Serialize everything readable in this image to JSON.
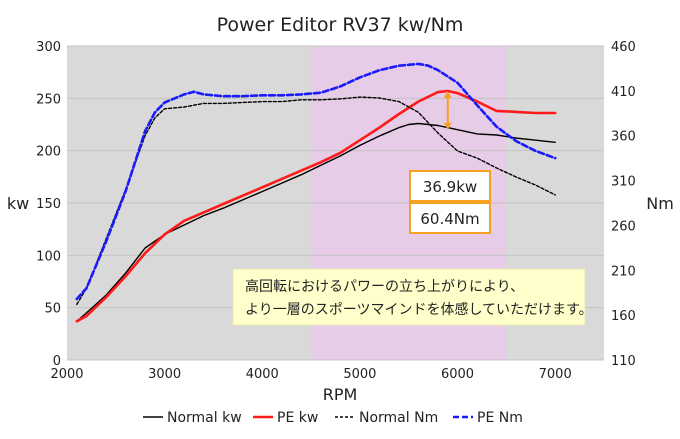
{
  "chart_data": {
    "type": "line",
    "title": "Power Editor RV37 kw/Nm",
    "xlabel": "RPM",
    "ylabel_left": "kw",
    "ylabel_right": "Nm",
    "xlim": [
      2000,
      7500
    ],
    "ylim_left": [
      0,
      300
    ],
    "ylim_right": [
      110,
      460
    ],
    "xticks": [
      2000,
      3000,
      4000,
      5000,
      6000,
      7000
    ],
    "yticks_left": [
      0,
      50,
      100,
      150,
      200,
      250,
      300
    ],
    "yticks_right": [
      110,
      160,
      210,
      260,
      310,
      360,
      410,
      460
    ],
    "grid": true,
    "legend_position": "bottom",
    "highlight_band": {
      "x": [
        4500,
        6500
      ],
      "color": "#e6cce6"
    },
    "plot_background": "#d9d9d9",
    "series": [
      {
        "name": "Normal kw",
        "axis": "left",
        "color": "#000000",
        "dash": "solid",
        "width": 1.4,
        "x": [
          2100,
          2200,
          2400,
          2600,
          2800,
          3000,
          3200,
          3400,
          3600,
          3800,
          4000,
          4200,
          4400,
          4600,
          4800,
          5000,
          5200,
          5400,
          5500,
          5600,
          5800,
          6000,
          6200,
          6400,
          6600,
          6800,
          7000
        ],
        "values": [
          37,
          45,
          62,
          83,
          107,
          120,
          129,
          138,
          145,
          153,
          161,
          169,
          177,
          186,
          195,
          205,
          214,
          222,
          225,
          226,
          224,
          220,
          216,
          215,
          212,
          210,
          208
        ]
      },
      {
        "name": "PE kw",
        "axis": "left",
        "color": "#ff1a1a",
        "dash": "solid",
        "width": 2.6,
        "x": [
          2100,
          2200,
          2400,
          2600,
          2800,
          3000,
          3200,
          3400,
          3600,
          3800,
          4000,
          4200,
          4400,
          4600,
          4800,
          5000,
          5200,
          5400,
          5600,
          5800,
          5900,
          6000,
          6200,
          6400,
          6600,
          6800,
          7000
        ],
        "values": [
          37,
          42,
          60,
          80,
          102,
          120,
          133,
          141,
          149,
          157,
          165,
          173,
          181,
          189,
          198,
          210,
          222,
          235,
          247,
          256,
          257,
          255,
          247,
          238,
          237,
          236,
          236
        ]
      },
      {
        "name": "Normal Nm",
        "axis": "right",
        "color": "#000000",
        "dash": "dotted",
        "width": 1.4,
        "x": [
          2100,
          2200,
          2400,
          2600,
          2800,
          2900,
          3000,
          3200,
          3400,
          3600,
          3800,
          4000,
          4200,
          4400,
          4600,
          4800,
          5000,
          5200,
          5400,
          5600,
          5800,
          6000,
          6200,
          6400,
          6600,
          6800,
          7000
        ],
        "values": [
          172,
          190,
          245,
          300,
          360,
          380,
          390,
          392,
          396,
          396,
          397,
          398,
          398,
          400,
          400,
          401,
          403,
          402,
          398,
          386,
          363,
          343,
          335,
          324,
          314,
          305,
          294
        ]
      },
      {
        "name": "PE Nm",
        "axis": "right",
        "color": "#1a1aff",
        "dash": "dashed",
        "width": 2.6,
        "x": [
          2100,
          2200,
          2400,
          2600,
          2800,
          2900,
          3000,
          3200,
          3300,
          3400,
          3600,
          3800,
          4000,
          4200,
          4400,
          4600,
          4800,
          5000,
          5200,
          5400,
          5500,
          5600,
          5700,
          5800,
          6000,
          6200,
          6400,
          6600,
          6800,
          7000
        ],
        "values": [
          178,
          190,
          242,
          298,
          365,
          386,
          397,
          406,
          409,
          406,
          404,
          404,
          405,
          405,
          406,
          408,
          415,
          425,
          433,
          438,
          439,
          440,
          438,
          433,
          419,
          394,
          370,
          354,
          343,
          335
        ]
      }
    ],
    "annotations": [
      {
        "text": "36.9kw",
        "x": 5900,
        "from_left": 220,
        "to_left": 257
      },
      {
        "text": "60.4Nm"
      },
      {
        "text_lines": [
          "高回転におけるパワーの立ち上がりにより、",
          "より一層のスポーツマインドを体感していただけます。"
        ]
      }
    ]
  }
}
